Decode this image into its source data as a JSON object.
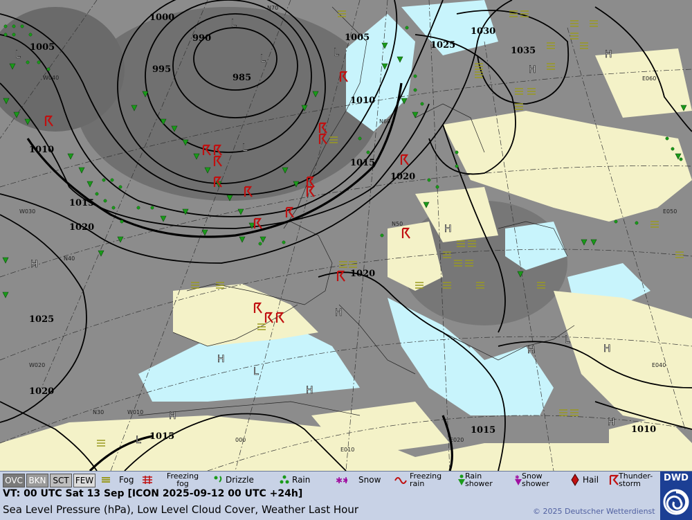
{
  "isobar_labels": [
    "1000",
    "1005",
    "990",
    "985",
    "995",
    "1005",
    "1030",
    "1025",
    "1035",
    "1010",
    "1010",
    "1015",
    "1020",
    "1015",
    "1020",
    "1025",
    "1020",
    "1020",
    "1015",
    "1015",
    "1010"
  ],
  "pressure_centers": [
    "L",
    "L",
    "L",
    "L",
    "L",
    "H",
    "H",
    "H",
    "H",
    "H",
    "H",
    "H",
    "H",
    "L",
    "L",
    "H",
    "H",
    "L",
    "H"
  ],
  "grid_labels": [
    "N70",
    "N60",
    "N50",
    "N40",
    "N30",
    "W040",
    "W030",
    "W020",
    "W010",
    "000",
    "E010",
    "E020",
    "E050",
    "E060",
    "E040"
  ],
  "legend": {
    "cloud_cover": [
      "OVC",
      "BKN",
      "SCT",
      "FEW"
    ],
    "fog": "Fog",
    "freezing_fog": "Freezing fog",
    "drizzle": "Drizzle",
    "rain": "Rain",
    "snow": "Snow",
    "freezing_rain": "Freezing rain",
    "rain_shower": "Rain shower",
    "snow_shower": "Snow shower",
    "hail": "Hail",
    "thunderstorm": "Thunder-storm"
  },
  "valid_time": "VT: 00 UTC Sat  13 Sep [ICON 2025-09-12 00 UTC +24h]",
  "description": "Sea Level Pressure (hPa), Low Level Cloud Cover, Weather Last Hour",
  "copyright": "© 2025 Deutscher Wetterdienst",
  "logo": "DWD",
  "colors": {
    "sea": "#c8f4fc",
    "land": "#f4f2c8",
    "cloud": "#8a8a8a",
    "rain": "#1a9a1a",
    "thunder": "#c01010",
    "fog": "#9a9a20",
    "legend_bg": "#c8d2e6",
    "dwd": "#1c3f94"
  }
}
